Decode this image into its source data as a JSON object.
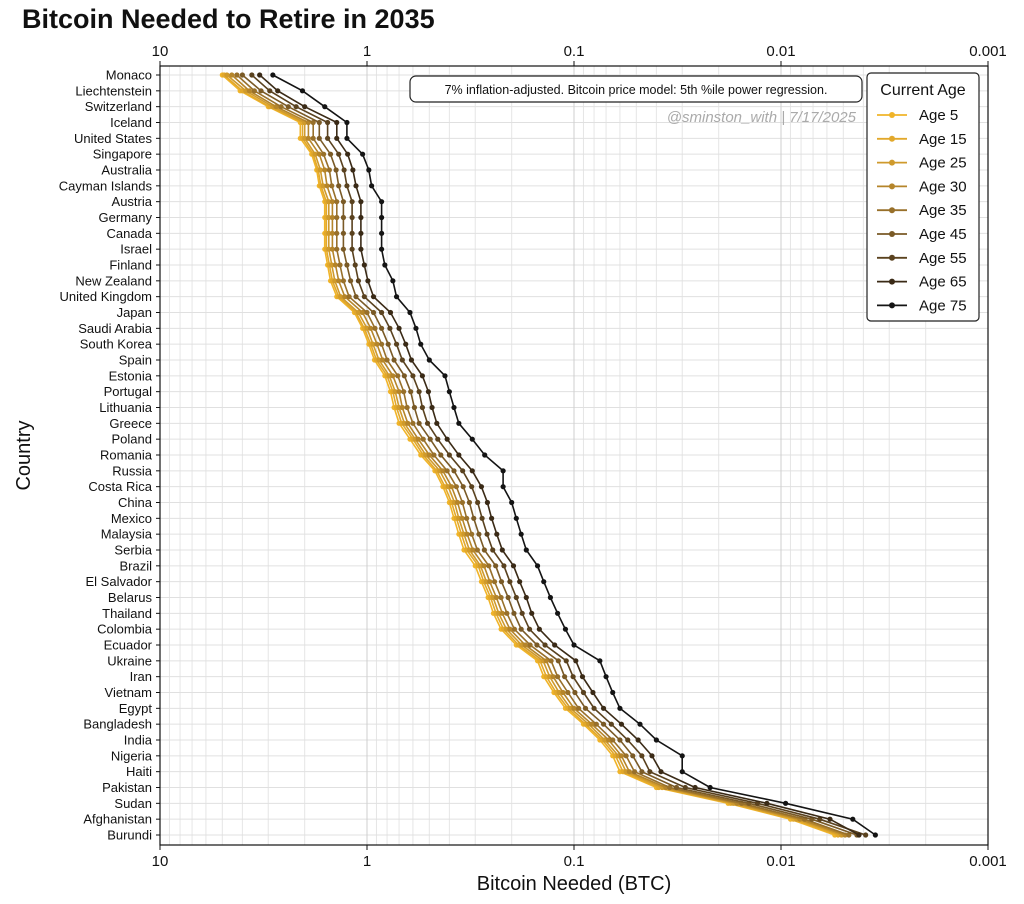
{
  "chart_data": {
    "type": "line",
    "title": "Bitcoin Needed to Retire in 2035",
    "xlabel": "Bitcoin Needed (BTC)",
    "ylabel": "Country",
    "x_scale": "log",
    "x_reversed": true,
    "xlim": [
      10,
      0.001
    ],
    "x_ticks": [
      {
        "value": 10,
        "label": "10"
      },
      {
        "value": 1,
        "label": "1"
      },
      {
        "value": 0.1,
        "label": "0.1"
      },
      {
        "value": 0.01,
        "label": "0.01"
      },
      {
        "value": 0.001,
        "label": "0.001"
      }
    ],
    "grid": true,
    "legend": {
      "title": "Current Age",
      "placement": "top-right"
    },
    "annotation": "7% inflation-adjusted. Bitcoin price model: 5th %ile power regression.",
    "watermark": "@sminston_with  |  7/17/2025",
    "categories": [
      "Monaco",
      "Liechtenstein",
      "Switzerland",
      "Iceland",
      "United States",
      "Singapore",
      "Australia",
      "Cayman Islands",
      "Austria",
      "Germany",
      "Canada",
      "Israel",
      "Finland",
      "New Zealand",
      "United Kingdom",
      "Japan",
      "Saudi Arabia",
      "South Korea",
      "Spain",
      "Estonia",
      "Portugal",
      "Lithuania",
      "Greece",
      "Poland",
      "Romania",
      "Russia",
      "Costa Rica",
      "China",
      "Mexico",
      "Malaysia",
      "Serbia",
      "Brazil",
      "El Salvador",
      "Belarus",
      "Thailand",
      "Colombia",
      "Ecuador",
      "Ukraine",
      "Iran",
      "Vietnam",
      "Egypt",
      "Bangladesh",
      "India",
      "Nigeria",
      "Haiti",
      "Pakistan",
      "Sudan",
      "Afghanistan",
      "Burundi"
    ],
    "series": [
      {
        "name": "Age 5",
        "color": "#f0b429",
        "values": [
          5.0,
          4.1,
          3.0,
          2.1,
          2.1,
          1.85,
          1.75,
          1.7,
          1.6,
          1.6,
          1.6,
          1.6,
          1.55,
          1.5,
          1.4,
          1.15,
          1.05,
          0.98,
          0.92,
          0.82,
          0.77,
          0.74,
          0.7,
          0.62,
          0.55,
          0.47,
          0.43,
          0.4,
          0.38,
          0.36,
          0.34,
          0.3,
          0.28,
          0.26,
          0.245,
          0.225,
          0.19,
          0.15,
          0.14,
          0.125,
          0.11,
          0.09,
          0.075,
          0.065,
          0.06,
          0.04,
          0.018,
          0.009,
          0.0055
        ]
      },
      {
        "name": "Age 15",
        "color": "#e2a82b",
        "values": [
          4.9,
          4.0,
          2.95,
          2.05,
          2.05,
          1.82,
          1.72,
          1.67,
          1.57,
          1.57,
          1.57,
          1.57,
          1.52,
          1.47,
          1.37,
          1.13,
          1.03,
          0.96,
          0.9,
          0.8,
          0.75,
          0.72,
          0.68,
          0.6,
          0.535,
          0.46,
          0.42,
          0.39,
          0.37,
          0.35,
          0.33,
          0.29,
          0.273,
          0.253,
          0.238,
          0.219,
          0.185,
          0.146,
          0.136,
          0.122,
          0.107,
          0.088,
          0.073,
          0.063,
          0.058,
          0.039,
          0.0175,
          0.0087,
          0.0053
        ]
      },
      {
        "name": "Age 25",
        "color": "#cf9a2c",
        "values": [
          4.75,
          3.85,
          2.85,
          2.0,
          2.0,
          1.78,
          1.68,
          1.63,
          1.53,
          1.53,
          1.53,
          1.53,
          1.48,
          1.43,
          1.34,
          1.1,
          1.0,
          0.935,
          0.875,
          0.78,
          0.73,
          0.7,
          0.66,
          0.585,
          0.52,
          0.445,
          0.405,
          0.378,
          0.36,
          0.34,
          0.32,
          0.283,
          0.265,
          0.246,
          0.231,
          0.212,
          0.179,
          0.141,
          0.131,
          0.118,
          0.104,
          0.085,
          0.071,
          0.061,
          0.056,
          0.0375,
          0.017,
          0.0084,
          0.0051
        ]
      },
      {
        "name": "Age 30",
        "color": "#b5852a",
        "values": [
          4.5,
          3.7,
          2.75,
          1.92,
          1.92,
          1.7,
          1.6,
          1.56,
          1.47,
          1.47,
          1.47,
          1.47,
          1.42,
          1.37,
          1.28,
          1.05,
          0.96,
          0.895,
          0.84,
          0.75,
          0.7,
          0.675,
          0.635,
          0.565,
          0.5,
          0.43,
          0.39,
          0.365,
          0.347,
          0.328,
          0.308,
          0.272,
          0.255,
          0.237,
          0.222,
          0.204,
          0.172,
          0.136,
          0.126,
          0.113,
          0.1,
          0.082,
          0.068,
          0.059,
          0.054,
          0.036,
          0.0163,
          0.0081,
          0.0049
        ]
      },
      {
        "name": "Age 35",
        "color": "#98702a",
        "values": [
          4.25,
          3.5,
          2.6,
          1.82,
          1.82,
          1.62,
          1.52,
          1.48,
          1.4,
          1.4,
          1.4,
          1.4,
          1.35,
          1.3,
          1.22,
          1.0,
          0.915,
          0.85,
          0.8,
          0.71,
          0.665,
          0.64,
          0.6,
          0.535,
          0.475,
          0.41,
          0.37,
          0.346,
          0.33,
          0.312,
          0.293,
          0.258,
          0.242,
          0.225,
          0.211,
          0.194,
          0.163,
          0.129,
          0.12,
          0.107,
          0.095,
          0.078,
          0.065,
          0.056,
          0.051,
          0.0345,
          0.0155,
          0.0077,
          0.0047
        ]
      },
      {
        "name": "Age 45",
        "color": "#7a5a26",
        "values": [
          4.0,
          3.25,
          2.4,
          1.7,
          1.7,
          1.5,
          1.41,
          1.37,
          1.3,
          1.3,
          1.3,
          1.3,
          1.25,
          1.2,
          1.13,
          0.93,
          0.85,
          0.79,
          0.74,
          0.66,
          0.615,
          0.59,
          0.56,
          0.495,
          0.44,
          0.38,
          0.343,
          0.32,
          0.305,
          0.288,
          0.271,
          0.239,
          0.224,
          0.208,
          0.195,
          0.18,
          0.151,
          0.119,
          0.111,
          0.099,
          0.088,
          0.072,
          0.06,
          0.052,
          0.047,
          0.032,
          0.0143,
          0.0071,
          0.0043
        ]
      },
      {
        "name": "Age 55",
        "color": "#5a421f",
        "values": [
          3.6,
          2.95,
          2.2,
          1.55,
          1.55,
          1.37,
          1.29,
          1.25,
          1.18,
          1.18,
          1.18,
          1.18,
          1.14,
          1.1,
          1.03,
          0.85,
          0.775,
          0.72,
          0.675,
          0.6,
          0.56,
          0.54,
          0.51,
          0.455,
          0.4,
          0.345,
          0.312,
          0.292,
          0.278,
          0.263,
          0.247,
          0.218,
          0.204,
          0.19,
          0.178,
          0.164,
          0.138,
          0.109,
          0.101,
          0.09,
          0.08,
          0.066,
          0.055,
          0.047,
          0.043,
          0.029,
          0.013,
          0.0065,
          0.0039
        ]
      },
      {
        "name": "Age 65",
        "color": "#3a2a16",
        "values": [
          3.3,
          2.7,
          2.0,
          1.4,
          1.4,
          1.24,
          1.17,
          1.13,
          1.07,
          1.07,
          1.07,
          1.07,
          1.03,
          0.99,
          0.93,
          0.77,
          0.7,
          0.65,
          0.61,
          0.54,
          0.505,
          0.485,
          0.46,
          0.41,
          0.36,
          0.31,
          0.28,
          0.262,
          0.25,
          0.236,
          0.222,
          0.196,
          0.183,
          0.17,
          0.16,
          0.147,
          0.124,
          0.098,
          0.091,
          0.081,
          0.072,
          0.059,
          0.049,
          0.042,
          0.038,
          0.026,
          0.0117,
          0.0058,
          0.0042
        ]
      },
      {
        "name": "Age 75",
        "color": "#141414",
        "values": [
          2.85,
          2.05,
          1.6,
          1.25,
          1.25,
          1.05,
          0.98,
          0.95,
          0.85,
          0.85,
          0.85,
          0.85,
          0.82,
          0.75,
          0.72,
          0.62,
          0.58,
          0.55,
          0.5,
          0.42,
          0.4,
          0.38,
          0.36,
          0.31,
          0.27,
          0.22,
          0.22,
          0.2,
          0.19,
          0.18,
          0.17,
          0.15,
          0.14,
          0.13,
          0.12,
          0.11,
          0.1,
          0.075,
          0.07,
          0.065,
          0.06,
          0.048,
          0.04,
          0.03,
          0.03,
          0.022,
          0.0095,
          0.0045,
          0.0035
        ]
      }
    ]
  }
}
